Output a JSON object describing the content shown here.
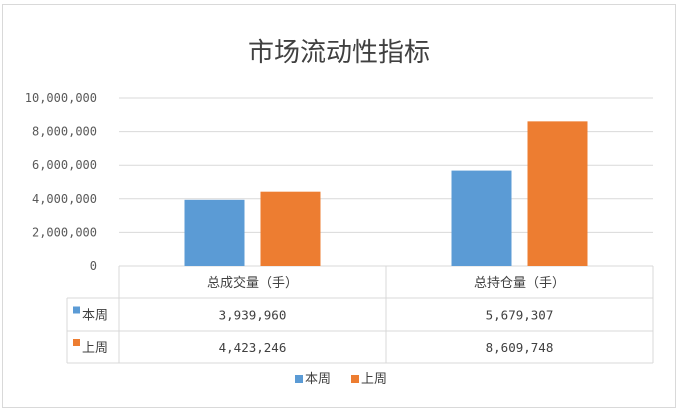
{
  "chart_data": {
    "type": "bar",
    "title": "市场流动性指标",
    "categories": [
      "总成交量（手）",
      "总持仓量（手）"
    ],
    "series": [
      {
        "name": "本周",
        "color": "#5b9bd5",
        "values": [
          3939960,
          5679307
        ],
        "labels": [
          "3,939,960",
          "5,679,307"
        ]
      },
      {
        "name": "上周",
        "color": "#ed7d31",
        "values": [
          4423246,
          8609748
        ],
        "labels": [
          "4,423,246",
          "8,609,748"
        ]
      }
    ],
    "ylim": [
      0,
      10000000
    ],
    "yticks": [
      0,
      2000000,
      4000000,
      6000000,
      8000000,
      10000000
    ],
    "ytick_labels": [
      "0",
      "2,000,000",
      "4,000,000",
      "6,000,000",
      "8,000,000",
      "10,000,000"
    ],
    "grid": true,
    "data_table": true,
    "legend": "bottom"
  }
}
